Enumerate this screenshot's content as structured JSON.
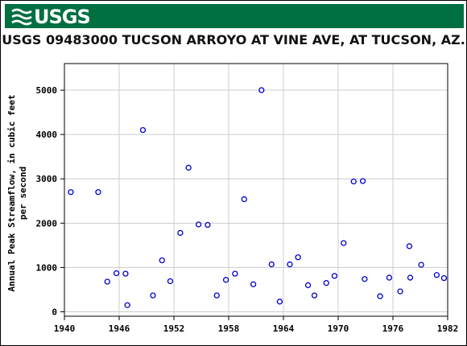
{
  "header": {
    "logo_text": "USGS",
    "logo_icon": "usgs-wave-icon",
    "banner_color": "#006f41"
  },
  "chart_data": {
    "type": "scatter",
    "title": "USGS 09483000 TUCSON ARROYO AT VINE AVE, AT TUCSON, AZ.",
    "xlabel": "",
    "ylabel_lines": [
      "Annual Peak Streamflow, in cubic feet",
      "per second"
    ],
    "xlim": [
      1940,
      1982
    ],
    "ylim": [
      -100,
      5600
    ],
    "x_ticks": [
      1940,
      1946,
      1952,
      1958,
      1964,
      1970,
      1976,
      1982
    ],
    "y_ticks": [
      0,
      1000,
      2000,
      3000,
      4000,
      5000
    ],
    "grid": true,
    "marker_color": "#0000cc",
    "series": [
      {
        "name": "",
        "points": [
          {
            "x": 1940.7,
            "y": 2700
          },
          {
            "x": 1943.7,
            "y": 2700
          },
          {
            "x": 1944.7,
            "y": 680
          },
          {
            "x": 1945.7,
            "y": 870
          },
          {
            "x": 1946.7,
            "y": 860
          },
          {
            "x": 1946.9,
            "y": 150
          },
          {
            "x": 1948.6,
            "y": 4100
          },
          {
            "x": 1949.7,
            "y": 370
          },
          {
            "x": 1950.7,
            "y": 1160
          },
          {
            "x": 1951.6,
            "y": 690
          },
          {
            "x": 1952.7,
            "y": 1780
          },
          {
            "x": 1953.6,
            "y": 3250
          },
          {
            "x": 1954.7,
            "y": 1970
          },
          {
            "x": 1955.7,
            "y": 1960
          },
          {
            "x": 1956.7,
            "y": 370
          },
          {
            "x": 1957.7,
            "y": 720
          },
          {
            "x": 1958.7,
            "y": 860
          },
          {
            "x": 1959.7,
            "y": 2540
          },
          {
            "x": 1960.7,
            "y": 620
          },
          {
            "x": 1961.6,
            "y": 5000
          },
          {
            "x": 1962.7,
            "y": 1070
          },
          {
            "x": 1963.6,
            "y": 230
          },
          {
            "x": 1964.7,
            "y": 1070
          },
          {
            "x": 1965.6,
            "y": 1230
          },
          {
            "x": 1966.7,
            "y": 600
          },
          {
            "x": 1967.4,
            "y": 370
          },
          {
            "x": 1968.7,
            "y": 650
          },
          {
            "x": 1969.6,
            "y": 810
          },
          {
            "x": 1970.6,
            "y": 1550
          },
          {
            "x": 1971.7,
            "y": 2940
          },
          {
            "x": 1972.7,
            "y": 2950
          },
          {
            "x": 1972.9,
            "y": 740
          },
          {
            "x": 1974.6,
            "y": 350
          },
          {
            "x": 1975.6,
            "y": 770
          },
          {
            "x": 1976.8,
            "y": 460
          },
          {
            "x": 1977.8,
            "y": 1480
          },
          {
            "x": 1977.9,
            "y": 770
          },
          {
            "x": 1979.1,
            "y": 1060
          },
          {
            "x": 1980.8,
            "y": 830
          },
          {
            "x": 1981.6,
            "y": 760
          }
        ]
      }
    ]
  }
}
